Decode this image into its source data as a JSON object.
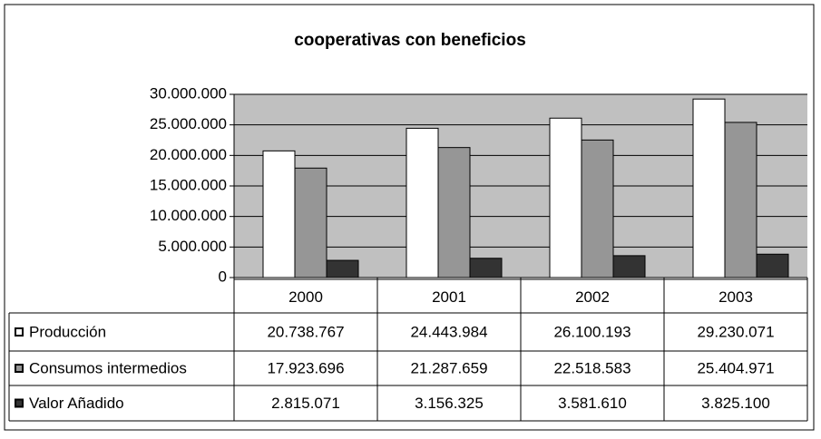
{
  "chart_data": {
    "type": "bar",
    "title": "cooperativas con beneficios",
    "categories": [
      "2000",
      "2001",
      "2002",
      "2003"
    ],
    "series": [
      {
        "name": "Producción",
        "color": "#ffffff",
        "values": [
          20738767,
          24443984,
          26100193,
          29230071
        ],
        "value_labels": [
          "20.738.767",
          "24.443.984",
          "26.100.193",
          "29.230.071"
        ]
      },
      {
        "name": "Consumos intermedios",
        "color": "#969696",
        "values": [
          17923696,
          21287659,
          22518583,
          25404971
        ],
        "value_labels": [
          "17.923.696",
          "21.287.659",
          "22.518.583",
          "25.404.971"
        ]
      },
      {
        "name": "Valor Añadido",
        "color": "#333333",
        "values": [
          2815071,
          3156325,
          3581610,
          3825100
        ],
        "value_labels": [
          "2.815.071",
          "3.156.325",
          "3.581.610",
          "3.825.100"
        ]
      }
    ],
    "ylim": [
      0,
      30000000
    ],
    "yticks": [
      0,
      {
        "value": 5000000,
        "label": "5.000.000"
      },
      {
        "value": 10000000,
        "label": "10.000.000"
      },
      {
        "value": 15000000,
        "label": "15.000.000"
      },
      {
        "value": 20000000,
        "label": "20.000.000"
      },
      {
        "value": 25000000,
        "label": "25.000.000"
      },
      {
        "value": 30000000,
        "label": "30.000.000"
      }
    ],
    "grid": true,
    "plot_background": "#c0c0c0"
  }
}
